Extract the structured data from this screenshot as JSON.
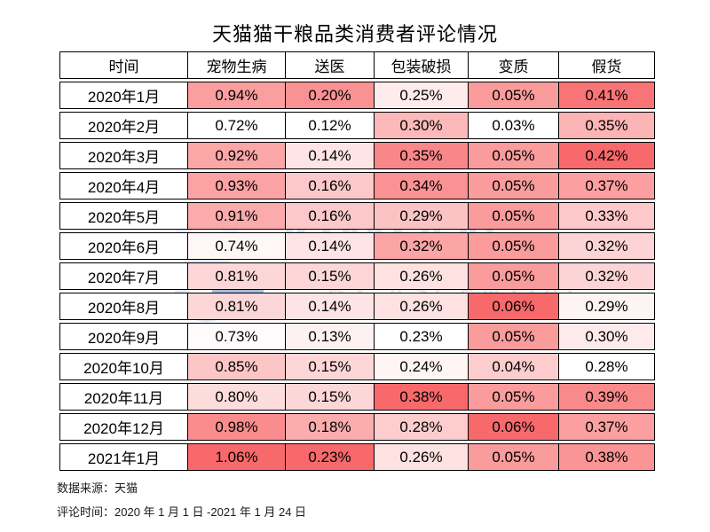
{
  "title": "天猫猫干粮品类消费者评论情况",
  "watermark": {
    "brand": "YIMIAN",
    "byline": "BY ASCENTIAL",
    "logo_light_color": "#c9daee",
    "logo_dark_color": "#6b8ec2"
  },
  "footer": {
    "source_line": "数据来源：天猫",
    "period_line": "评论时间：2020 年 1 月 1 日 -2021 年 1 月 24 日"
  },
  "chart_data": {
    "type": "heatmap",
    "title": "天猫猫干粮品类消费者评论情况",
    "row_header": "时间",
    "columns": [
      "宠物生病",
      "送医",
      "包装破损",
      "变质",
      "假货"
    ],
    "rows": [
      "2020年1月",
      "2020年2月",
      "2020年3月",
      "2020年4月",
      "2020年5月",
      "2020年6月",
      "2020年7月",
      "2020年8月",
      "2020年9月",
      "2020年10月",
      "2020年11月",
      "2020年12月",
      "2021年1月"
    ],
    "values_pct": [
      [
        0.94,
        0.2,
        0.25,
        0.05,
        0.41
      ],
      [
        0.72,
        0.12,
        0.3,
        0.03,
        0.35
      ],
      [
        0.92,
        0.14,
        0.35,
        0.05,
        0.42
      ],
      [
        0.93,
        0.16,
        0.34,
        0.05,
        0.37
      ],
      [
        0.91,
        0.16,
        0.29,
        0.05,
        0.33
      ],
      [
        0.74,
        0.14,
        0.32,
        0.05,
        0.32
      ],
      [
        0.81,
        0.15,
        0.26,
        0.05,
        0.32
      ],
      [
        0.81,
        0.14,
        0.26,
        0.06,
        0.29
      ],
      [
        0.73,
        0.13,
        0.23,
        0.05,
        0.3
      ],
      [
        0.85,
        0.15,
        0.24,
        0.04,
        0.28
      ],
      [
        0.8,
        0.15,
        0.38,
        0.05,
        0.39
      ],
      [
        0.98,
        0.18,
        0.28,
        0.06,
        0.37
      ],
      [
        1.06,
        0.23,
        0.26,
        0.05,
        0.38
      ]
    ],
    "value_suffix": "%",
    "value_decimals": 2,
    "color_scale": {
      "mode": "per-column-linear",
      "min_color": "#FFFFFF",
      "max_color": "#F8696B"
    },
    "grid_border_color": "#000000",
    "legend": "none"
  }
}
